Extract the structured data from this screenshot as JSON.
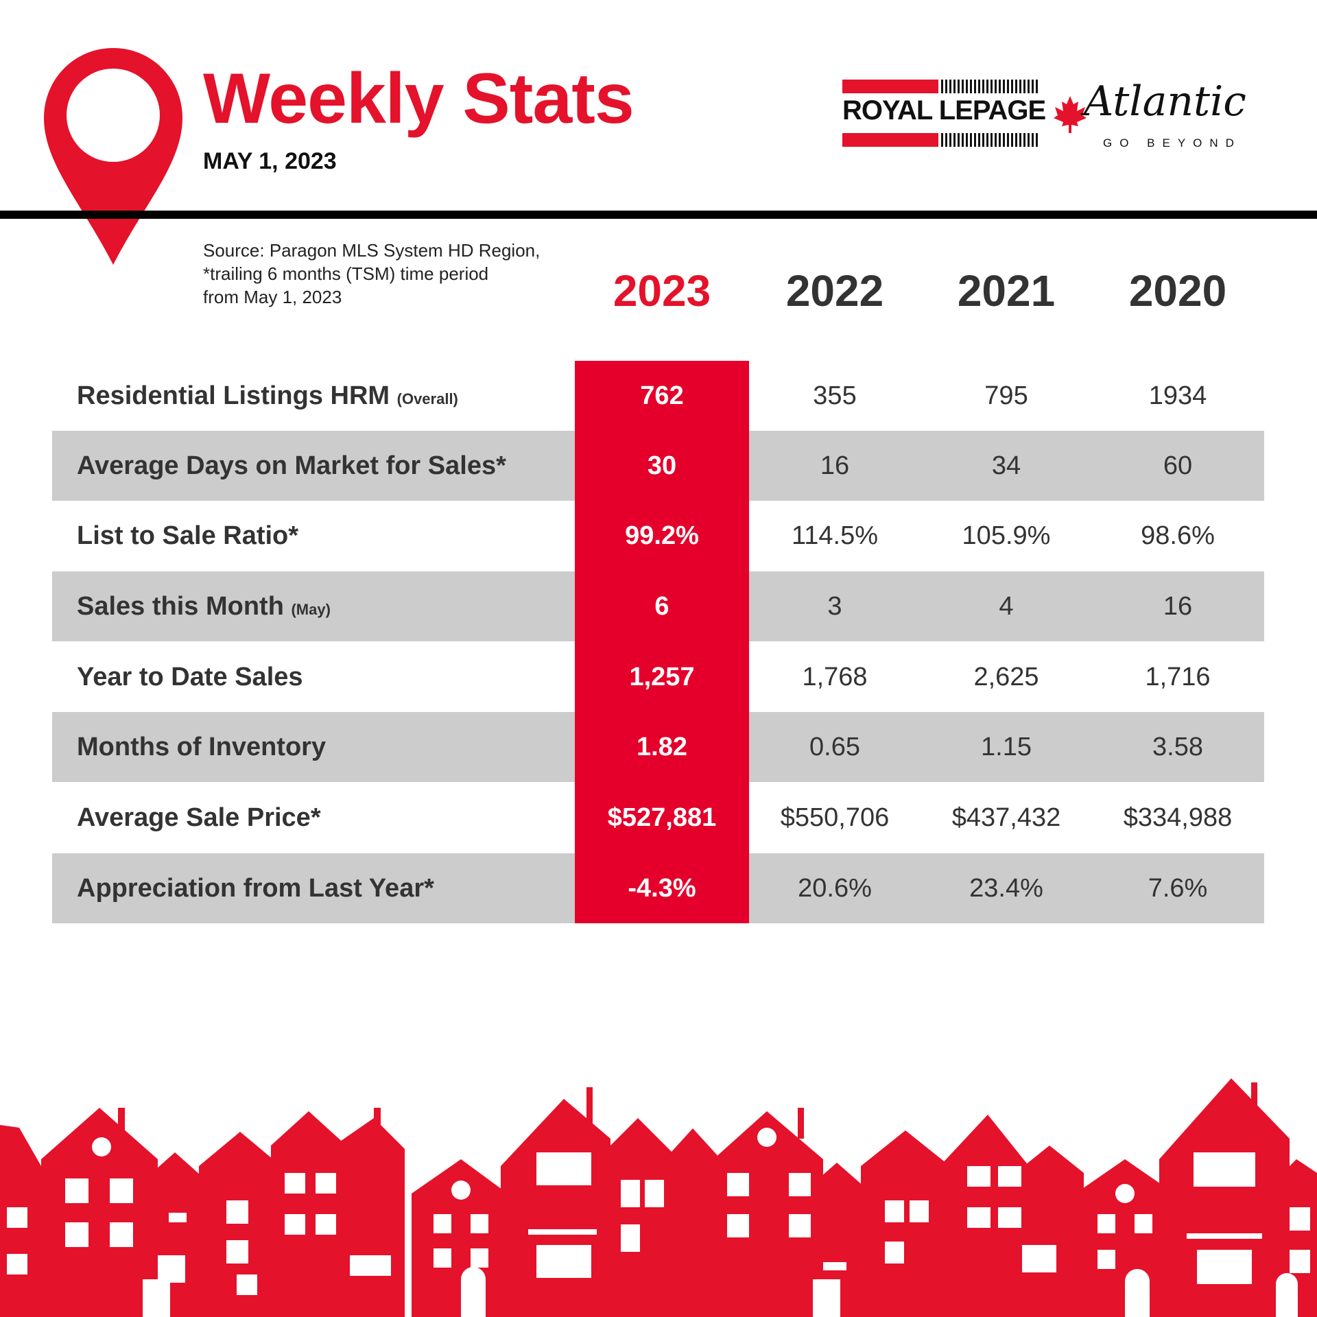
{
  "header": {
    "title": "Weekly Stats",
    "date": "MAY 1, 2023",
    "logo_royal": "ROYAL LEPAGE",
    "logo_atlantic": "Atlantic",
    "logo_tagline": "GO BEYOND"
  },
  "source": {
    "lines": [
      "Source: Paragon MLS System HD Region,",
      "*trailing 6 months (TSM) time period",
      "from May 1, 2023"
    ]
  },
  "table": {
    "years": [
      "2023",
      "2022",
      "2021",
      "2020"
    ],
    "rows": [
      {
        "label": "Residential Listings HRM",
        "note": "(Overall)",
        "values": [
          "762",
          "355",
          "795",
          "1934"
        ]
      },
      {
        "label": "Average Days on Market for Sales*",
        "note": "",
        "values": [
          "30",
          "16",
          "34",
          "60"
        ]
      },
      {
        "label": "List to Sale Ratio*",
        "note": "",
        "values": [
          "99.2%",
          "114.5%",
          "105.9%",
          "98.6%"
        ]
      },
      {
        "label": "Sales this Month",
        "note": "(May)",
        "values": [
          "6",
          "3",
          "4",
          "16"
        ]
      },
      {
        "label": "Year to Date Sales",
        "note": "",
        "values": [
          "1,257",
          "1,768",
          "2,625",
          "1,716"
        ]
      },
      {
        "label": "Months of Inventory",
        "note": "",
        "values": [
          "1.82",
          "0.65",
          "1.15",
          "3.58"
        ]
      },
      {
        "label": "Average Sale Price*",
        "note": "",
        "values": [
          "$527,881",
          "$550,706",
          "$437,432",
          "$334,988"
        ]
      },
      {
        "label": "Appreciation from Last Year*",
        "note": "",
        "values": [
          "-4.3%",
          "20.6%",
          "23.4%",
          "7.6%"
        ]
      }
    ]
  },
  "colors": {
    "accent": "#e4122a",
    "highlight_column": "#e4002b",
    "stripe": "#cccccc",
    "text": "#333333",
    "rule": "#000000"
  },
  "icons": {
    "pin": "map-pin-icon",
    "leaf": "maple-leaf-icon",
    "skyline": "houses-skyline"
  }
}
